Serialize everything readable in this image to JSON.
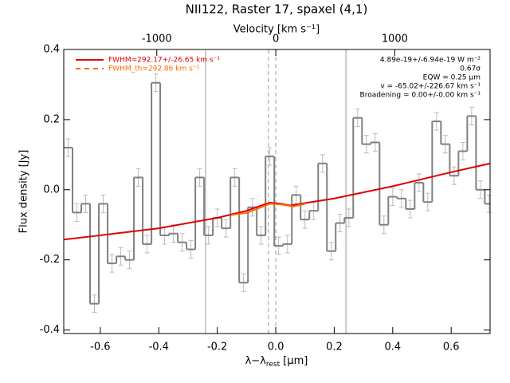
{
  "chart_data": {
    "type": "step",
    "title": "NII122, Raster 17, spaxel (4,1)",
    "xlabel_parts": [
      "λ−λ",
      "rest",
      " [μm]"
    ],
    "ylabel": "Flux density [Jy]",
    "x2label": "Velocity [km s⁻¹]",
    "xlim": [
      -0.725,
      0.733
    ],
    "ylim": [
      -0.41,
      0.4
    ],
    "x2lim": [
      -1782,
      1801
    ],
    "xticks": [
      -0.6,
      -0.4,
      -0.2,
      {
        "value": 0,
        "label": "0.0"
      },
      0.2,
      0.4,
      0.6
    ],
    "yticks": [
      -0.4,
      -0.2,
      {
        "value": 0,
        "label": "0.0"
      },
      0.2,
      0.4
    ],
    "x2ticks": [
      -1000,
      0,
      1000
    ],
    "bin_width": 0.03,
    "x": [
      -0.71,
      -0.68,
      -0.65,
      -0.62,
      -0.59,
      -0.56,
      -0.53,
      -0.5,
      -0.47,
      -0.44,
      -0.41,
      -0.38,
      -0.35,
      -0.32,
      -0.29,
      -0.26,
      -0.23,
      -0.2,
      -0.17,
      -0.14,
      -0.11,
      -0.08,
      -0.05,
      -0.02,
      0.01,
      0.04,
      0.07,
      0.1,
      0.13,
      0.16,
      0.19,
      0.22,
      0.25,
      0.28,
      0.31,
      0.34,
      0.37,
      0.4,
      0.43,
      0.46,
      0.49,
      0.52,
      0.55,
      0.58,
      0.61,
      0.64,
      0.67,
      0.7,
      0.73
    ],
    "series": [
      {
        "name": "data",
        "color": "#808080",
        "values": [
          0.12,
          -0.065,
          -0.04,
          -0.325,
          -0.04,
          -0.21,
          -0.19,
          -0.2,
          0.035,
          -0.155,
          0.305,
          -0.13,
          -0.125,
          -0.15,
          -0.17,
          0.035,
          -0.13,
          -0.08,
          -0.11,
          0.035,
          -0.265,
          -0.05,
          -0.13,
          0.095,
          -0.16,
          -0.155,
          -0.015,
          -0.085,
          -0.06,
          0.075,
          -0.175,
          -0.095,
          -0.08,
          0.205,
          0.13,
          0.135,
          -0.1,
          -0.02,
          -0.025,
          -0.055,
          0.02,
          -0.035,
          0.195,
          0.13,
          0.04,
          0.11,
          0.21,
          0.0,
          -0.04
        ],
        "errors": [
          0.025,
          0.025,
          0.025,
          0.025,
          0.025,
          0.025,
          0.025,
          0.025,
          0.025,
          0.025,
          0.025,
          0.025,
          0.025,
          0.025,
          0.025,
          0.025,
          0.025,
          0.025,
          0.025,
          0.025,
          0.025,
          0.025,
          0.025,
          0.025,
          0.025,
          0.025,
          0.025,
          0.025,
          0.025,
          0.025,
          0.025,
          0.025,
          0.025,
          0.025,
          0.025,
          0.025,
          0.025,
          0.025,
          0.025,
          0.025,
          0.025,
          0.025,
          0.025,
          0.025,
          0.025,
          0.025,
          0.025,
          0.025,
          0.025
        ]
      }
    ],
    "fits": [
      {
        "name": "FWHM=292.17+/-26.65 km s⁻¹",
        "color": "#e00000",
        "dash": false,
        "x": [
          -0.725,
          -0.6,
          -0.4,
          -0.2,
          -0.1,
          -0.05,
          -0.02,
          0.02,
          0.05,
          0.1,
          0.2,
          0.4,
          0.6,
          0.733
        ],
        "values": [
          -0.142,
          -0.13,
          -0.11,
          -0.08,
          -0.06,
          -0.045,
          -0.037,
          -0.04,
          -0.045,
          -0.038,
          -0.025,
          0.01,
          0.05,
          0.075
        ]
      },
      {
        "name": "FWHM_th=292.86 km s⁻¹",
        "color": "#ff6a00",
        "dash": true,
        "x": [
          -0.15,
          -0.1,
          -0.05,
          -0.02,
          0.02,
          0.06,
          0.1
        ],
        "values": [
          -0.072,
          -0.066,
          -0.05,
          -0.04,
          -0.042,
          -0.048,
          -0.04
        ]
      }
    ],
    "vlines": [
      {
        "value": -0.24,
        "dash": false
      },
      {
        "value": 0.24,
        "dash": false
      },
      {
        "value": -0.025,
        "dash": true
      },
      {
        "value": 0,
        "dash": true
      }
    ],
    "annotations": [
      "4.89e-19+/-6.94e-19 W m⁻²",
      "0.67σ",
      "EQW = 0.25 μm",
      "v = -65.02+/-226.67 km s⁻¹",
      "Broadening = 0.00+/-0.00 km s⁻¹"
    ]
  }
}
